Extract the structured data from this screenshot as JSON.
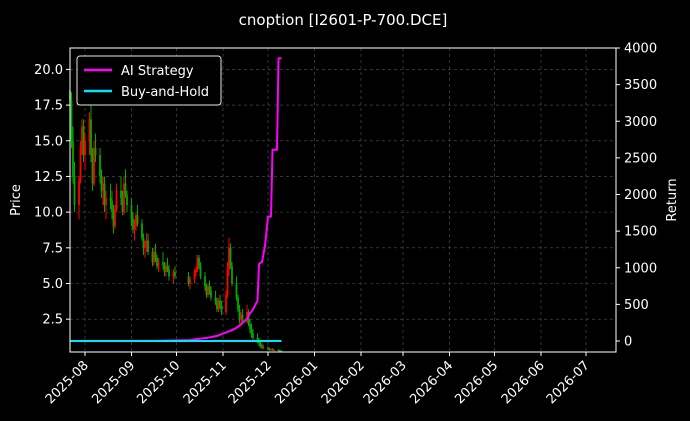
{
  "chart_data": {
    "type": "candlestick+line",
    "title": "cnoption [I2601-P-700.DCE]",
    "xlabel": "",
    "ylabel_left": "Price",
    "ylabel_right": "Return",
    "x_tick_labels": [
      "2025-08",
      "2025-09",
      "2025-10",
      "2025-11",
      "2025-12",
      "2026-01",
      "2026-02",
      "2026-03",
      "2026-04",
      "2026-05",
      "2026-06",
      "2026-07"
    ],
    "x_ticks": [
      "2025-08-01",
      "2025-09-01",
      "2025-10-01",
      "2025-11-01",
      "2025-12-01",
      "2026-01-01",
      "2026-02-01",
      "2026-03-01",
      "2026-04-01",
      "2026-05-01",
      "2026-06-01",
      "2026-07-01"
    ],
    "xlim": [
      "2025-07-22",
      "2026-07-21"
    ],
    "ylim_left": [
      0.2,
      21.5
    ],
    "y_ticks_left": [
      "2.5",
      "5.0",
      "7.5",
      "10.0",
      "12.5",
      "15.0",
      "17.5",
      "20.0"
    ],
    "ylim_right": [
      -150,
      4000
    ],
    "y_ticks_right": [
      "0",
      "500",
      "1000",
      "1500",
      "2000",
      "2500",
      "3000",
      "3500",
      "4000"
    ],
    "grid": true,
    "legend_position": "top-left",
    "candle_up_color": "#ff0000",
    "candle_down_color": "#00aa00",
    "series": [
      {
        "name": "AI Strategy",
        "color": "#ff00ff",
        "points": [
          [
            "2025-07-22",
            0
          ],
          [
            "2025-08-15",
            0
          ],
          [
            "2025-09-15",
            2
          ],
          [
            "2025-10-01",
            8
          ],
          [
            "2025-10-10",
            12
          ],
          [
            "2025-10-15",
            28
          ],
          [
            "2025-10-22",
            45
          ],
          [
            "2025-10-28",
            70
          ],
          [
            "2025-11-02",
            110
          ],
          [
            "2025-11-06",
            140
          ],
          [
            "2025-11-10",
            180
          ],
          [
            "2025-11-13",
            230
          ],
          [
            "2025-11-17",
            300
          ],
          [
            "2025-11-19",
            380
          ],
          [
            "2025-11-21",
            430
          ],
          [
            "2025-11-24",
            550
          ],
          [
            "2025-11-25",
            1050
          ],
          [
            "2025-11-27",
            1080
          ],
          [
            "2025-11-29",
            1300
          ],
          [
            "2025-12-01",
            1700
          ],
          [
            "2025-12-03",
            1700
          ],
          [
            "2025-12-04",
            2610
          ],
          [
            "2025-12-07",
            2610
          ],
          [
            "2025-12-08",
            3860
          ],
          [
            "2025-12-10",
            3860
          ]
        ]
      },
      {
        "name": "Buy-and-Hold",
        "color": "#00e5ff",
        "points": [
          [
            "2025-07-22",
            0
          ],
          [
            "2025-12-10",
            0
          ]
        ]
      }
    ],
    "candles": [
      [
        "2025-07-22",
        18.5,
        20.0,
        16.5,
        17.8
      ],
      [
        "2025-07-23",
        17.8,
        18.4,
        14.5,
        15.0
      ],
      [
        "2025-07-24",
        15.0,
        16.0,
        12.0,
        12.5
      ],
      [
        "2025-07-25",
        12.5,
        13.5,
        10.0,
        10.5
      ],
      [
        "2025-07-28",
        10.5,
        12.5,
        9.5,
        12.2
      ],
      [
        "2025-07-29",
        12.2,
        15.0,
        12.0,
        14.5
      ],
      [
        "2025-07-30",
        14.5,
        16.5,
        14.0,
        16.0
      ],
      [
        "2025-07-31",
        16.0,
        16.5,
        13.5,
        14.0
      ],
      [
        "2025-08-01",
        14.0,
        15.5,
        13.0,
        15.0
      ],
      [
        "2025-08-04",
        15.0,
        17.0,
        14.0,
        16.5
      ],
      [
        "2025-08-05",
        16.5,
        17.5,
        13.5,
        14.0
      ],
      [
        "2025-08-06",
        14.0,
        14.5,
        11.5,
        12.0
      ],
      [
        "2025-08-07",
        12.0,
        15.0,
        11.8,
        14.5
      ],
      [
        "2025-08-08",
        14.5,
        15.5,
        13.5,
        14.0
      ],
      [
        "2025-08-11",
        14.0,
        14.5,
        12.0,
        12.5
      ],
      [
        "2025-08-12",
        12.5,
        13.0,
        11.0,
        11.5
      ],
      [
        "2025-08-13",
        11.5,
        12.5,
        10.5,
        12.0
      ],
      [
        "2025-08-14",
        12.0,
        12.5,
        10.0,
        10.5
      ],
      [
        "2025-08-15",
        10.5,
        11.5,
        9.5,
        11.0
      ],
      [
        "2025-08-18",
        11.0,
        12.0,
        10.2,
        10.8
      ],
      [
        "2025-08-19",
        10.8,
        11.5,
        9.5,
        10.0
      ],
      [
        "2025-08-20",
        10.0,
        10.5,
        8.5,
        9.0
      ],
      [
        "2025-08-21",
        9.0,
        10.5,
        8.8,
        10.2
      ],
      [
        "2025-08-22",
        10.2,
        12.0,
        10.0,
        11.5
      ],
      [
        "2025-08-25",
        11.5,
        12.5,
        10.5,
        11.0
      ],
      [
        "2025-08-26",
        11.0,
        11.5,
        9.8,
        10.0
      ],
      [
        "2025-08-27",
        10.0,
        12.5,
        9.8,
        12.0
      ],
      [
        "2025-08-28",
        12.0,
        13.0,
        11.0,
        11.2
      ],
      [
        "2025-08-29",
        11.2,
        11.5,
        10.0,
        10.5
      ],
      [
        "2025-09-01",
        10.5,
        11.0,
        9.0,
        9.5
      ],
      [
        "2025-09-02",
        9.5,
        10.0,
        8.5,
        8.8
      ],
      [
        "2025-09-03",
        8.8,
        9.5,
        8.0,
        9.0
      ],
      [
        "2025-09-04",
        9.0,
        10.0,
        8.7,
        9.8
      ],
      [
        "2025-09-05",
        9.8,
        10.5,
        9.0,
        9.2
      ],
      [
        "2025-09-08",
        9.2,
        9.5,
        8.0,
        8.2
      ],
      [
        "2025-09-09",
        8.2,
        8.5,
        7.0,
        7.5
      ],
      [
        "2025-09-10",
        7.5,
        8.0,
        6.8,
        7.8
      ],
      [
        "2025-09-11",
        7.8,
        8.5,
        7.2,
        8.0
      ],
      [
        "2025-09-12",
        8.0,
        8.5,
        7.0,
        7.2
      ],
      [
        "2025-09-15",
        7.2,
        7.5,
        6.2,
        6.5
      ],
      [
        "2025-09-16",
        6.5,
        7.5,
        6.3,
        7.2
      ],
      [
        "2025-09-17",
        7.2,
        7.8,
        6.5,
        6.8
      ],
      [
        "2025-09-18",
        6.8,
        7.0,
        6.0,
        6.2
      ],
      [
        "2025-09-19",
        6.2,
        6.8,
        5.8,
        6.5
      ],
      [
        "2025-09-22",
        6.5,
        7.2,
        6.0,
        6.3
      ],
      [
        "2025-09-23",
        6.3,
        6.5,
        5.5,
        5.8
      ],
      [
        "2025-09-24",
        5.8,
        6.5,
        5.5,
        6.2
      ],
      [
        "2025-09-25",
        6.2,
        6.8,
        5.8,
        6.0
      ],
      [
        "2025-09-26",
        6.0,
        6.3,
        5.2,
        5.5
      ],
      [
        "2025-09-29",
        5.5,
        6.0,
        5.0,
        5.8
      ],
      [
        "2025-09-30",
        5.8,
        6.2,
        5.3,
        5.5
      ],
      [
        "2025-10-09",
        5.5,
        5.8,
        4.8,
        5.0
      ],
      [
        "2025-10-10",
        5.0,
        5.5,
        4.6,
        5.3
      ],
      [
        "2025-10-13",
        5.3,
        6.0,
        5.0,
        5.8
      ],
      [
        "2025-10-14",
        5.8,
        6.2,
        5.5,
        6.0
      ],
      [
        "2025-10-15",
        6.0,
        7.0,
        5.8,
        6.8
      ],
      [
        "2025-10-16",
        6.8,
        7.0,
        6.0,
        6.2
      ],
      [
        "2025-10-17",
        6.2,
        6.5,
        5.3,
        5.5
      ],
      [
        "2025-10-20",
        5.5,
        5.8,
        4.5,
        4.8
      ],
      [
        "2025-10-21",
        4.8,
        5.0,
        4.0,
        4.2
      ],
      [
        "2025-10-22",
        4.2,
        5.0,
        4.0,
        4.8
      ],
      [
        "2025-10-23",
        4.8,
        5.2,
        4.2,
        4.5
      ],
      [
        "2025-10-24",
        4.5,
        4.8,
        3.8,
        4.0
      ],
      [
        "2025-10-27",
        4.0,
        4.5,
        3.5,
        3.8
      ],
      [
        "2025-10-28",
        3.8,
        4.0,
        3.0,
        3.2
      ],
      [
        "2025-10-29",
        3.2,
        4.0,
        3.0,
        3.8
      ],
      [
        "2025-10-30",
        3.8,
        4.2,
        3.2,
        3.5
      ],
      [
        "2025-10-31",
        3.5,
        3.8,
        2.8,
        3.0
      ],
      [
        "2025-11-03",
        3.0,
        4.5,
        2.8,
        4.2
      ],
      [
        "2025-11-04",
        4.2,
        6.5,
        4.0,
        6.0
      ],
      [
        "2025-11-05",
        6.0,
        8.2,
        5.5,
        7.5
      ],
      [
        "2025-11-06",
        7.5,
        7.8,
        6.0,
        6.2
      ],
      [
        "2025-11-07",
        6.2,
        6.5,
        4.8,
        5.0
      ],
      [
        "2025-11-10",
        5.0,
        5.5,
        3.8,
        4.0
      ],
      [
        "2025-11-11",
        4.0,
        4.2,
        3.0,
        3.2
      ],
      [
        "2025-11-12",
        3.2,
        3.5,
        2.2,
        2.5
      ],
      [
        "2025-11-13",
        2.5,
        3.0,
        2.0,
        2.8
      ],
      [
        "2025-11-14",
        2.8,
        3.2,
        2.2,
        2.4
      ],
      [
        "2025-11-17",
        2.4,
        3.5,
        2.2,
        3.0
      ],
      [
        "2025-11-18",
        3.0,
        3.2,
        2.0,
        2.2
      ],
      [
        "2025-11-19",
        2.2,
        2.5,
        1.5,
        1.8
      ],
      [
        "2025-11-20",
        1.8,
        2.2,
        1.2,
        1.5
      ],
      [
        "2025-11-21",
        1.5,
        1.8,
        1.0,
        1.2
      ],
      [
        "2025-11-24",
        1.2,
        1.5,
        0.8,
        1.0
      ],
      [
        "2025-11-25",
        1.0,
        1.2,
        0.6,
        0.8
      ],
      [
        "2025-11-26",
        0.8,
        1.0,
        0.5,
        0.6
      ],
      [
        "2025-11-27",
        0.6,
        0.8,
        0.4,
        0.5
      ],
      [
        "2025-11-28",
        0.5,
        0.7,
        0.4,
        0.5
      ],
      [
        "2025-12-01",
        0.5,
        0.6,
        0.35,
        0.4
      ],
      [
        "2025-12-02",
        0.4,
        0.5,
        0.3,
        0.35
      ],
      [
        "2025-12-03",
        0.35,
        0.45,
        0.3,
        0.4
      ],
      [
        "2025-12-04",
        0.4,
        0.45,
        0.3,
        0.3
      ],
      [
        "2025-12-05",
        0.3,
        0.4,
        0.25,
        0.35
      ],
      [
        "2025-12-08",
        0.35,
        0.4,
        0.25,
        0.3
      ],
      [
        "2025-12-09",
        0.3,
        0.35,
        0.22,
        0.28
      ],
      [
        "2025-12-10",
        0.28,
        0.32,
        0.22,
        0.25
      ]
    ]
  }
}
